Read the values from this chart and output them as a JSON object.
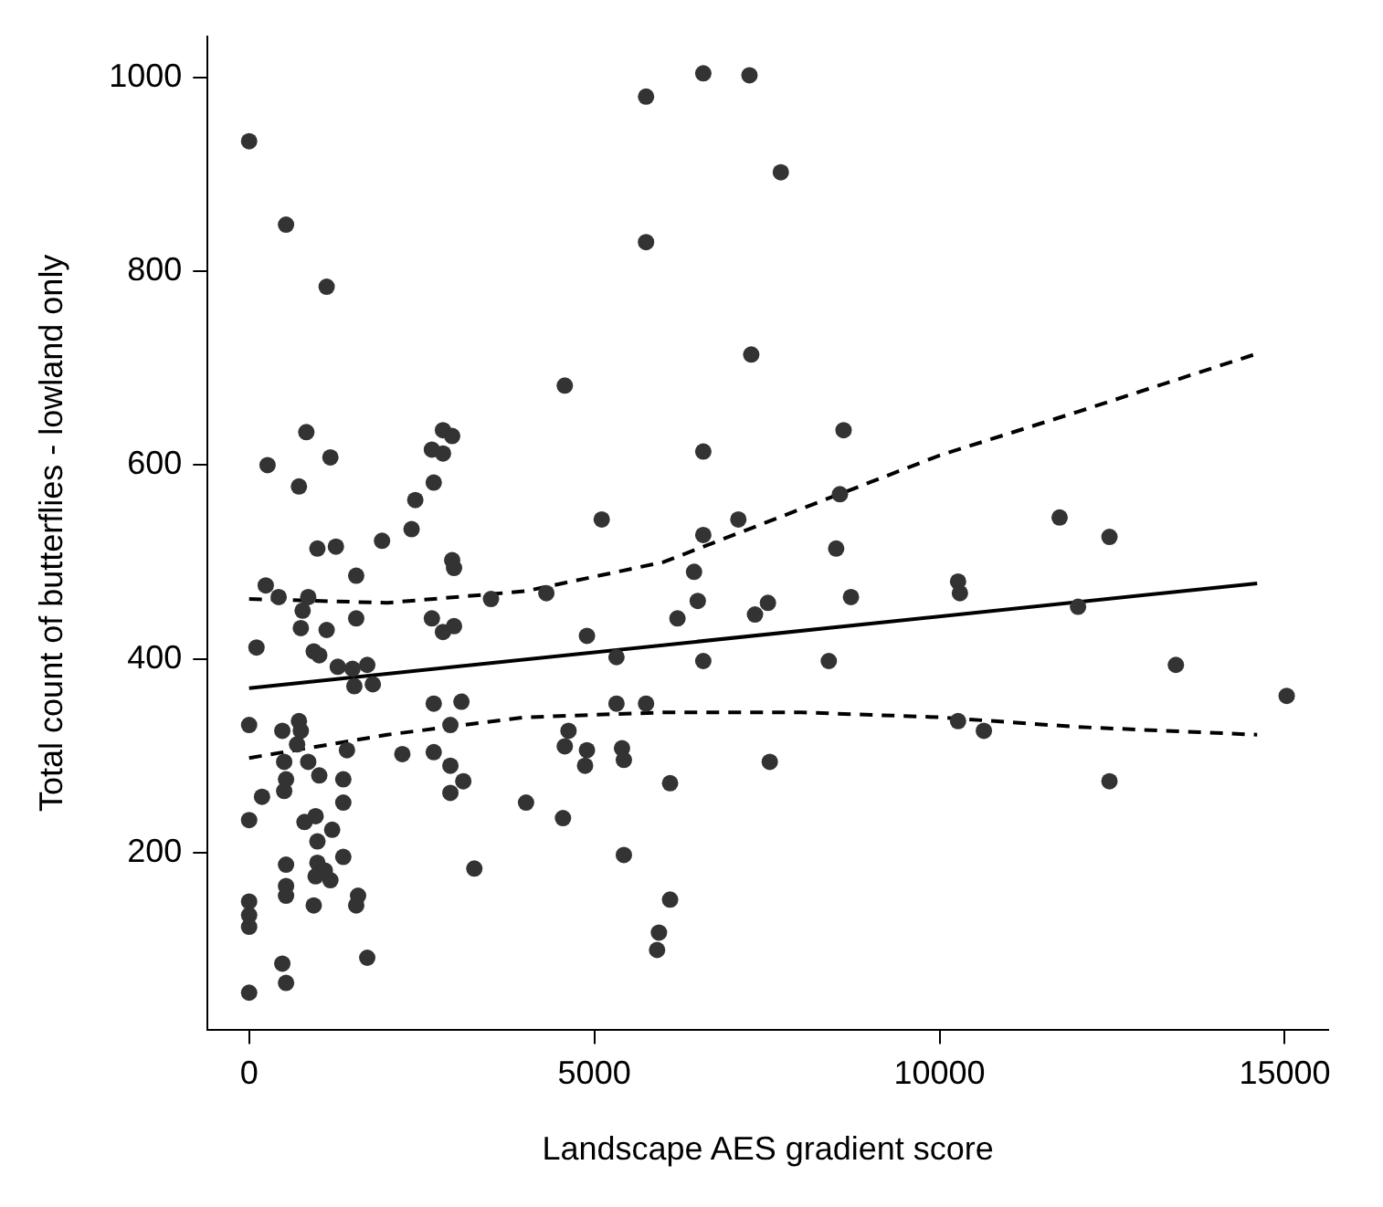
{
  "chart_data": {
    "type": "scatter",
    "xlabel": "Landscape AES gradient score",
    "ylabel": "Total count of butterflies - lowland only",
    "xlim": [
      -601,
      15629
    ],
    "ylim": [
      18,
      1042
    ],
    "xticks": [
      0,
      5000,
      10000,
      15000
    ],
    "yticks": [
      200,
      400,
      600,
      800,
      1000
    ],
    "grid": false,
    "legend": false,
    "series": [
      {
        "marker": "circle",
        "color": "#333333",
        "x": [
          0,
          535,
          1123,
          4572,
          829,
          267,
          1177,
          722,
          2808,
          2941,
          2647,
          2808,
          2674,
          2407,
          5107,
          2353,
          989,
          1257,
          1925,
          2941,
          2968,
          1551,
          241,
          428,
          856,
          775,
          1551,
          749,
          1123,
          2647,
          2808,
          2968,
          3503,
          4305,
          4893,
          107,
          936,
          1016,
          1284,
          1497,
          1711,
          1524,
          1792,
          5321,
          2674,
          3075,
          5321,
          0,
          481,
          722,
          749,
          2915,
          695,
          1417,
          2219,
          2674,
          4626,
          4572,
          4893,
          4866,
          5401,
          5428,
          508,
          856,
          1016,
          535,
          508,
          1364,
          2915,
          3102,
          2915,
          187,
          1364,
          4011,
          0,
          802,
          963,
          1203,
          4546,
          989,
          1364,
          535,
          989,
          963,
          1096,
          1177,
          3262,
          5428,
          535,
          535,
          936,
          1578,
          1551,
          0,
          0,
          0,
          1711,
          481,
          535,
          0,
          5749,
          6578,
          7247,
          7701,
          5749,
          7273,
          8610,
          6578,
          8557,
          7086,
          11739,
          6578,
          12461,
          8503,
          6444,
          6498,
          6204,
          7327,
          7514,
          8717,
          10268,
          10295,
          12006,
          6578,
          8396,
          13423,
          15028,
          5749,
          10268,
          10642,
          7541,
          6097,
          12461,
          6097,
          5936,
          5909
        ],
        "values": [
          934,
          848,
          784,
          682,
          634,
          600,
          608,
          578,
          636,
          630,
          616,
          612,
          582,
          564,
          544,
          534,
          514,
          516,
          522,
          502,
          494,
          486,
          476,
          464,
          464,
          450,
          442,
          432,
          430,
          442,
          428,
          434,
          462,
          468,
          424,
          412,
          408,
          404,
          392,
          390,
          394,
          372,
          374,
          402,
          354,
          356,
          354,
          332,
          326,
          336,
          326,
          332,
          312,
          306,
          302,
          304,
          326,
          310,
          306,
          290,
          308,
          296,
          294,
          294,
          280,
          276,
          264,
          276,
          290,
          274,
          262,
          258,
          252,
          252,
          234,
          232,
          238,
          224,
          236,
          212,
          196,
          188,
          190,
          176,
          182,
          172,
          184,
          198,
          166,
          156,
          146,
          156,
          146,
          150,
          136,
          124,
          92,
          86,
          66,
          56,
          980,
          1004,
          1002,
          902,
          830,
          714,
          636,
          614,
          570,
          544,
          546,
          528,
          526,
          514,
          490,
          460,
          442,
          446,
          458,
          464,
          480,
          468,
          454,
          398,
          398,
          394,
          362,
          354,
          336,
          326,
          294,
          272,
          274,
          152,
          118,
          100
        ]
      },
      {
        "type": "line",
        "color": "#000000",
        "line_style": "solid",
        "marker": "none",
        "x": [
          0,
          14600
        ],
        "values": [
          370,
          478
        ]
      },
      {
        "type": "line",
        "color": "#000000",
        "line_style": "dashed",
        "marker": "none",
        "x": [
          0,
          2000,
          4000,
          6000,
          8000,
          10000,
          12000,
          14600
        ],
        "values": [
          462,
          458,
          470,
          500,
          555,
          610,
          655,
          715
        ]
      },
      {
        "type": "line",
        "color": "#000000",
        "line_style": "dashed",
        "marker": "none",
        "x": [
          0,
          2000,
          4000,
          6000,
          8000,
          10000,
          12000,
          14600
        ],
        "values": [
          298,
          322,
          340,
          345,
          345,
          340,
          330,
          322
        ]
      }
    ]
  }
}
